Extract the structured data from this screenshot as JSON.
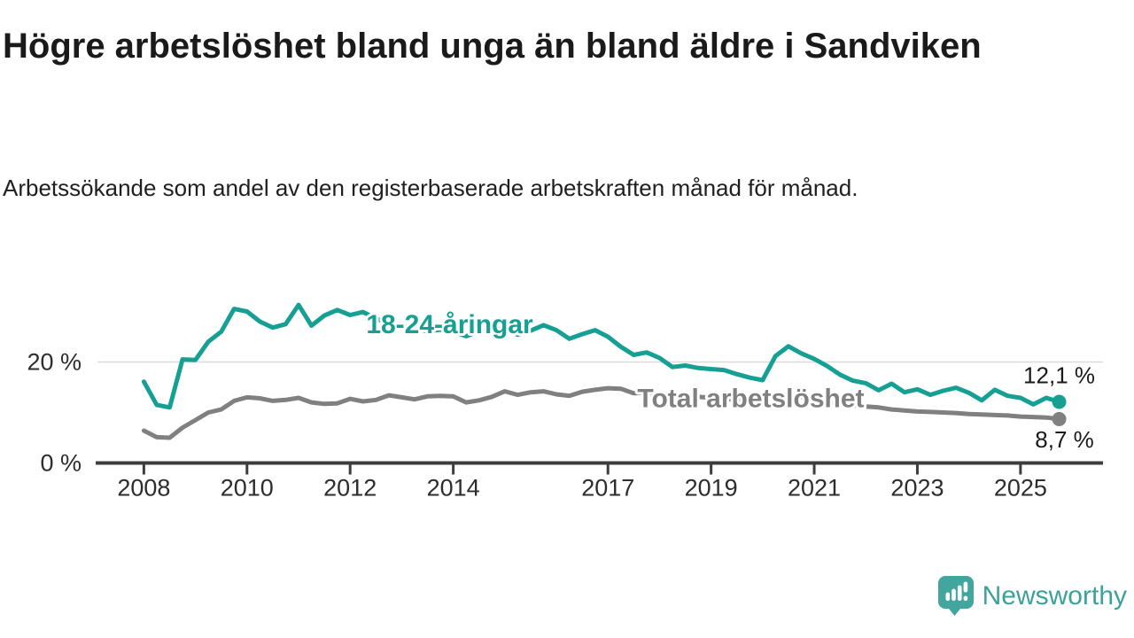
{
  "header": {
    "title": "Högre arbetslöshet bland unga än bland äldre i Sandviken",
    "subtitle": "Arbetssökande som andel av den registerbaserade arbetskraften månad för månad."
  },
  "footer": {
    "brand": "Newsworthy",
    "logo_icon": "speech-bubble-bar-chart-icon"
  },
  "colors": {
    "young_line": "#16a094",
    "total_line": "#808080",
    "brand_teal": "#42a59e",
    "title_text": "#1a1a1a",
    "axis_text": "#2d2d2d",
    "axis_line": "#3d3d3d",
    "gridline": "#dbdbdb",
    "value_label_text": "#1a1a1a"
  },
  "chart_data": {
    "type": "line",
    "title": "Högre arbetslöshet bland unga än bland äldre i Sandviken",
    "subtitle": "Arbetssökande som andel av den registerbaserade arbetskraften månad för månad.",
    "xlabel": "",
    "ylabel": "",
    "unit": "%",
    "xlim": [
      2007.1,
      2026.6
    ],
    "ylim": [
      0,
      34.5
    ],
    "grid": "horizontal-at-20-only",
    "gridlines": [
      20
    ],
    "legend": "inline-series-labels",
    "xticks": [
      2008,
      2010,
      2012,
      2014,
      2017,
      2019,
      2021,
      2023,
      2025
    ],
    "yticks": [
      {
        "value": 0,
        "label": "0 %"
      },
      {
        "value": 20,
        "label": "20 %"
      }
    ],
    "x_years": [
      2008,
      2008.25,
      2008.5,
      2008.75,
      2009,
      2009.25,
      2009.5,
      2009.75,
      2010,
      2010.25,
      2010.5,
      2010.75,
      2011,
      2011.25,
      2011.5,
      2011.75,
      2012,
      2012.25,
      2012.5,
      2012.75,
      2013,
      2013.25,
      2013.5,
      2013.75,
      2014,
      2014.25,
      2014.5,
      2014.75,
      2015,
      2015.25,
      2015.5,
      2015.75,
      2016,
      2016.25,
      2016.5,
      2016.75,
      2017,
      2017.25,
      2017.5,
      2017.75,
      2018,
      2018.25,
      2018.5,
      2018.75,
      2019,
      2019.25,
      2019.5,
      2019.75,
      2020,
      2020.25,
      2020.5,
      2020.75,
      2021,
      2021.25,
      2021.5,
      2021.75,
      2022,
      2022.25,
      2022.5,
      2022.75,
      2023,
      2023.25,
      2023.5,
      2023.75,
      2024,
      2024.25,
      2024.5,
      2024.75,
      2025,
      2025.25,
      2025.5,
      2025.75
    ],
    "series": [
      {
        "name": "18-24-åringar",
        "color_key": "young_line",
        "end_label": "12,1 %",
        "end_value": 12.1,
        "values": [
          16.1,
          11.5,
          11,
          20.5,
          20.4,
          24,
          26,
          30.5,
          30,
          28,
          26.8,
          27.5,
          31.3,
          27.2,
          29.2,
          30.3,
          29.3,
          29.9,
          28.6,
          27.6,
          27.2,
          26.6,
          26.1,
          26.4,
          26,
          25.1,
          26.1,
          26.6,
          26.3,
          25.4,
          26.2,
          27.3,
          26.3,
          24.6,
          25.5,
          26.3,
          25,
          23,
          21.4,
          21.9,
          20.8,
          19,
          19.3,
          18.8,
          18.6,
          18.4,
          17.6,
          16.9,
          16.4,
          21.2,
          23.1,
          21.7,
          20.6,
          19.2,
          17.5,
          16.3,
          15.8,
          14.4,
          15.7,
          14,
          14.6,
          13.5,
          14.3,
          14.9,
          13.9,
          12.4,
          14.5,
          13.3,
          12.9,
          11.6,
          12.9,
          12.1
        ]
      },
      {
        "name": "Total arbetslöshet",
        "color_key": "total_line",
        "end_label": "8,7 %",
        "end_value": 8.7,
        "values": [
          6.4,
          5.1,
          5,
          7,
          8.5,
          10,
          10.6,
          12.3,
          13,
          12.8,
          12.3,
          12.5,
          12.9,
          12,
          11.7,
          11.8,
          12.7,
          12.2,
          12.5,
          13.4,
          13,
          12.6,
          13.2,
          13.3,
          13.2,
          12,
          12.4,
          13.1,
          14.2,
          13.5,
          14,
          14.2,
          13.6,
          13.3,
          14.1,
          14.5,
          14.8,
          14.7,
          13.8,
          13.9,
          13.7,
          13.5,
          13.3,
          13.1,
          12.9,
          12.7,
          12.5,
          12.3,
          12.3,
          13.1,
          13.5,
          13.1,
          12.5,
          12.1,
          11.7,
          11.4,
          11.2,
          11,
          10.6,
          10.4,
          10.2,
          10.1,
          10,
          9.9,
          9.7,
          9.6,
          9.5,
          9.4,
          9.2,
          9.1,
          9,
          8.7
        ]
      }
    ]
  }
}
